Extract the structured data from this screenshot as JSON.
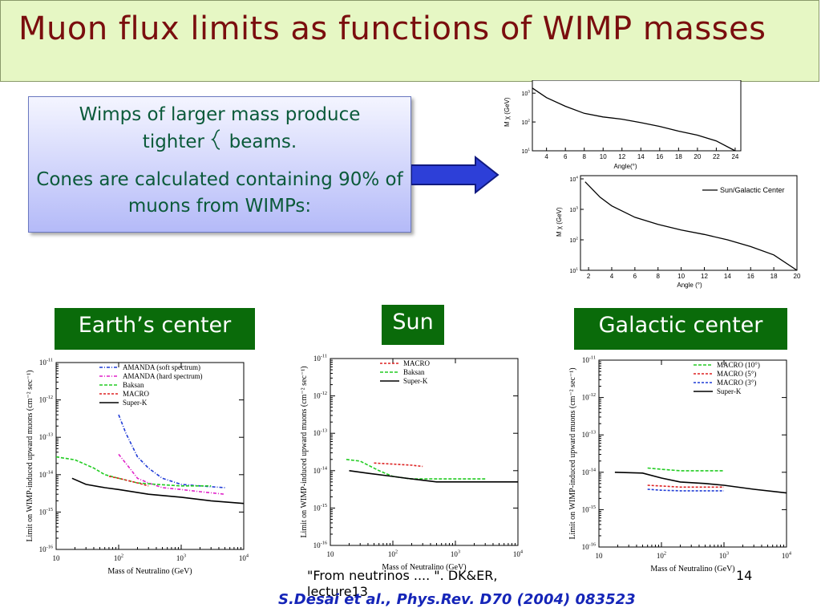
{
  "slide": {
    "title": "Muon flux limits as functions of WIMP masses",
    "callout_line1": "Wimps of larger mass produce",
    "callout_line2a": "tighter",
    "callout_line2b": "beams.",
    "callout_line3": "Cones are calculated containing 90% of muons from WIMPs:",
    "label_earth": "Earth’s center",
    "label_sun": "Sun",
    "label_galactic": "Galactic center",
    "footer_ref": "\"From neutrinos .... \". DK&ER, lecture13",
    "page_number": "14",
    "citation": "S.Desai et al., Phys.Rev. D70 (2004) 083523",
    "colors": {
      "title": "#7a0e0e",
      "label_bg": "#0a6b0a",
      "citation": "#1525b8",
      "callout_text": "#0b5a3a"
    },
    "icons": [
      "right-arrow-icon",
      "brace-icon"
    ]
  },
  "chart_data": [
    {
      "id": "cone-angle-top",
      "type": "line",
      "xlabel": "Angle(°)",
      "ylabel": "M χ (GeV)",
      "xticks": [
        4,
        6,
        8,
        10,
        12,
        14,
        16,
        18,
        20,
        22,
        24
      ],
      "yticks": [
        "10",
        "10",
        "10"
      ],
      "ytick_exp": [
        "3",
        "2",
        "1"
      ],
      "ylog": true,
      "series": [
        {
          "x": [
            2.5,
            4,
            6,
            8,
            10,
            12,
            14,
            16,
            18,
            20,
            22,
            24
          ],
          "y": [
            1500,
            700,
            350,
            200,
            150,
            125,
            95,
            70,
            48,
            35,
            22,
            10
          ]
        }
      ]
    },
    {
      "id": "cone-angle-sun-gc",
      "type": "line",
      "xlabel": "Angle (°)",
      "ylabel": "M χ (GeV)",
      "legend": [
        "Sun/Galactic Center"
      ],
      "xticks": [
        2,
        4,
        6,
        8,
        10,
        12,
        14,
        16,
        18,
        20
      ],
      "yticks": [
        "10",
        "10",
        "10",
        "10"
      ],
      "ytick_exp": [
        "4",
        "3",
        "2",
        "1"
      ],
      "ylog": true,
      "series": [
        {
          "name": "Sun/Galactic Center",
          "x": [
            1.7,
            3,
            4,
            6,
            8,
            10,
            12,
            14,
            16,
            18,
            20
          ],
          "y": [
            8000,
            2500,
            1300,
            550,
            320,
            210,
            150,
            100,
            60,
            32,
            10
          ]
        }
      ]
    },
    {
      "id": "earth-center",
      "type": "line",
      "xlabel": "Mass of Neutralino (GeV)",
      "ylabel": "Limit on WIMP-induced upward muons (cm⁻² sec⁻¹)",
      "xlog": true,
      "ylog": true,
      "xlim": [
        10,
        10000
      ],
      "ylim": [
        1e-16,
        1e-11
      ],
      "xticks": [
        "10",
        "10",
        "10",
        "10"
      ],
      "xtick_exp": [
        "",
        "2",
        "3",
        "4"
      ],
      "yticks": [
        "10",
        "10",
        "10",
        "10",
        "10",
        "10"
      ],
      "ytick_exp": [
        "-11",
        "-12",
        "-13",
        "-14",
        "-15",
        "-16"
      ],
      "series": [
        {
          "name": "AMANDA (soft spectrum)",
          "color": "#1f3bd6",
          "dash": "4,2,1,2",
          "x": [
            100,
            130,
            200,
            300,
            500,
            1000,
            2000,
            5000
          ],
          "y": [
            4e-13,
            1.3e-13,
            3e-14,
            1.5e-14,
            8e-15,
            5.5e-15,
            5e-15,
            4.5e-15
          ]
        },
        {
          "name": "AMANDA (hard spectrum)",
          "color": "#e020c8",
          "dash": "4,2,1,2",
          "x": [
            100,
            150,
            200,
            300,
            500,
            1000,
            2000,
            5000
          ],
          "y": [
            3.5e-14,
            1.5e-14,
            8e-15,
            6e-15,
            4.5e-15,
            4e-15,
            3.5e-15,
            3e-15
          ]
        },
        {
          "name": "Baksan",
          "color": "#22cc22",
          "dash": "4,2",
          "x": [
            10,
            20,
            40,
            60,
            100,
            200,
            400,
            1000,
            3000
          ],
          "y": [
            3e-14,
            2.5e-14,
            1.5e-14,
            1e-14,
            8e-15,
            6e-15,
            5.5e-15,
            5e-15,
            5e-15
          ]
        },
        {
          "name": "MACRO",
          "color": "#dd2222",
          "dash": "3,2",
          "x": [
            70,
            100,
            200,
            300
          ],
          "y": [
            9e-15,
            8e-15,
            6e-15,
            5e-15
          ]
        },
        {
          "name": "Super-K",
          "color": "#000000",
          "dash": "",
          "x": [
            18,
            30,
            60,
            100,
            300,
            1000,
            3000,
            10000
          ],
          "y": [
            8e-15,
            5.5e-15,
            4.5e-15,
            4e-15,
            3e-15,
            2.5e-15,
            2e-15,
            1.7e-15
          ]
        }
      ]
    },
    {
      "id": "sun",
      "type": "line",
      "xlabel": "Mass of Neutralino (GeV)",
      "ylabel": "Limit on WIMP-induced upward muons (cm⁻² sec⁻¹)",
      "xlog": true,
      "ylog": true,
      "xlim": [
        10,
        10000
      ],
      "ylim": [
        1e-16,
        1e-11
      ],
      "xticks": [
        "10",
        "10",
        "10",
        "10"
      ],
      "xtick_exp": [
        "",
        "2",
        "3",
        "4"
      ],
      "yticks": [
        "10",
        "10",
        "10",
        "10",
        "10",
        "10"
      ],
      "ytick_exp": [
        "-11",
        "-12",
        "-13",
        "-14",
        "-15",
        "-16"
      ],
      "series": [
        {
          "name": "MACRO",
          "color": "#dd2222",
          "dash": "3,2",
          "x": [
            50,
            100,
            200,
            300
          ],
          "y": [
            1.6e-14,
            1.5e-14,
            1.4e-14,
            1.3e-14
          ]
        },
        {
          "name": "Baksan",
          "color": "#22cc22",
          "dash": "4,2",
          "x": [
            18,
            30,
            60,
            100,
            200,
            500,
            1000,
            3000
          ],
          "y": [
            2e-14,
            1.8e-14,
            1e-14,
            7e-15,
            6e-15,
            6e-15,
            6e-15,
            6e-15
          ]
        },
        {
          "name": "Super-K",
          "color": "#000000",
          "dash": "",
          "x": [
            20,
            40,
            100,
            200,
            500,
            1000,
            3000,
            10000
          ],
          "y": [
            1e-14,
            8.5e-15,
            7e-15,
            6e-15,
            5e-15,
            5e-15,
            5e-15,
            5e-15
          ]
        }
      ]
    },
    {
      "id": "galactic-center",
      "type": "line",
      "xlabel": "Mass of Neutralino (GeV)",
      "ylabel": "Limit on WIMP-induced upward muons (cm⁻² sec⁻¹)",
      "xlog": true,
      "ylog": true,
      "xlim": [
        10,
        10000
      ],
      "ylim": [
        1e-16,
        1e-11
      ],
      "xticks": [
        "10",
        "10",
        "10",
        "10"
      ],
      "xtick_exp": [
        "",
        "2",
        "3",
        "4"
      ],
      "yticks": [
        "10",
        "10",
        "10",
        "10",
        "10",
        "10"
      ],
      "ytick_exp": [
        "-11",
        "-12",
        "-13",
        "-14",
        "-15",
        "-16"
      ],
      "series": [
        {
          "name": "MACRO (10°)",
          "color": "#22cc22",
          "dash": "4,2",
          "x": [
            60,
            100,
            200,
            1000
          ],
          "y": [
            1.3e-14,
            1.2e-14,
            1.1e-14,
            1.1e-14
          ]
        },
        {
          "name": "MACRO (5°)",
          "color": "#dd2222",
          "dash": "3,2",
          "x": [
            60,
            100,
            200,
            1000
          ],
          "y": [
            4.5e-15,
            4.3e-15,
            4e-15,
            4e-15
          ]
        },
        {
          "name": "MACRO (3°)",
          "color": "#1f3bd6",
          "dash": "3,2",
          "x": [
            60,
            100,
            200,
            1000
          ],
          "y": [
            3.5e-15,
            3.3e-15,
            3.2e-15,
            3.2e-15
          ]
        },
        {
          "name": "Super-K",
          "color": "#000000",
          "dash": "",
          "x": [
            18,
            50,
            100,
            200,
            500,
            1000,
            3000,
            10000
          ],
          "y": [
            1e-14,
            9.5e-15,
            7e-15,
            5.5e-15,
            5e-15,
            4.5e-15,
            3.5e-15,
            2.8e-15
          ]
        }
      ]
    }
  ]
}
